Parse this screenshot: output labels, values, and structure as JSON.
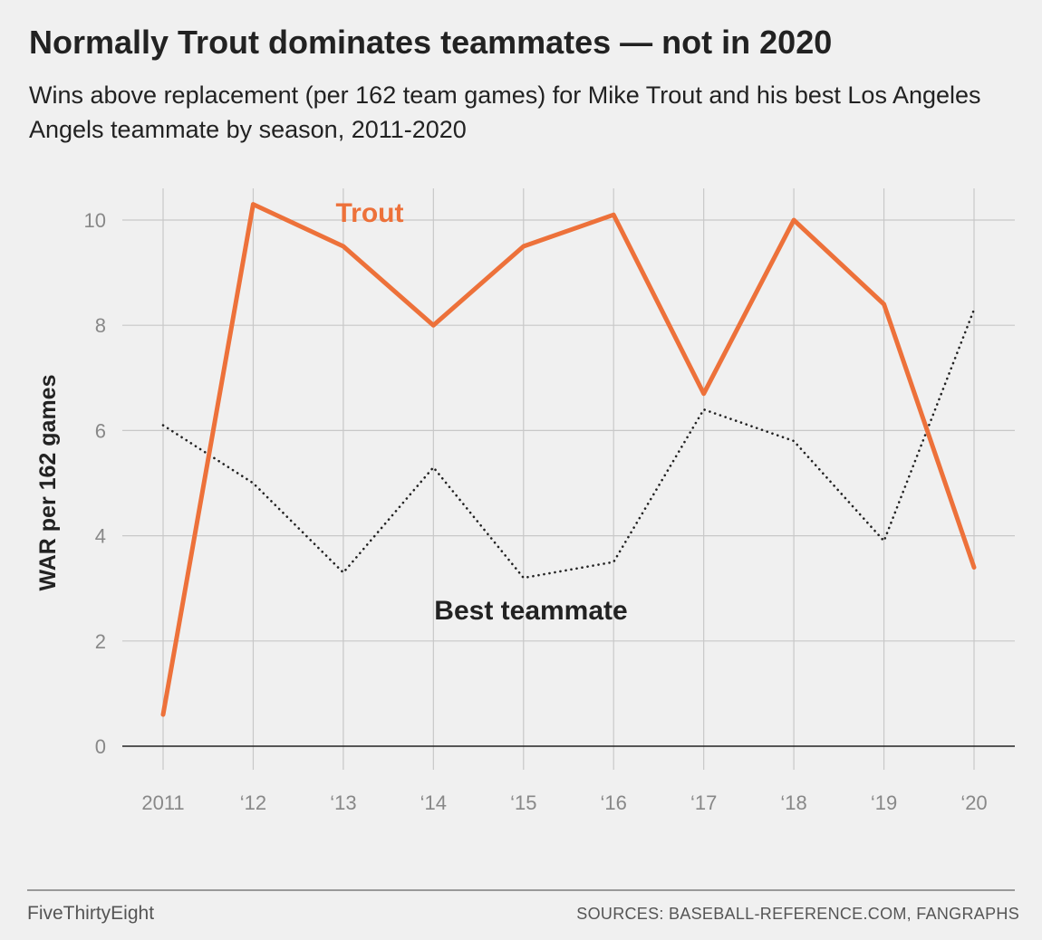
{
  "header": {
    "title": "Normally Trout dominates teammates — not in 2020",
    "subtitle": "Wins above replacement (per 162 team games) for Mike Trout and his best Los Angeles Angels teammate by season, 2011-2020"
  },
  "footer": {
    "brand": "FiveThirtyEight",
    "sources": "SOURCES: BASEBALL-REFERENCE.COM, FANGRAPHS"
  },
  "chart_data": {
    "type": "line",
    "title": "Normally Trout dominates teammates — not in 2020",
    "ylabel": "WAR per 162 games",
    "xlabel": "",
    "ylim": [
      0,
      10.5
    ],
    "yticks": [
      0,
      2,
      4,
      6,
      8,
      10
    ],
    "x": [
      2011,
      2012,
      2013,
      2014,
      2015,
      2016,
      2017,
      2018,
      2019,
      2020
    ],
    "xtick_labels": [
      "2011",
      "‘12",
      "‘13",
      "‘14",
      "‘15",
      "‘16",
      "‘17",
      "‘18",
      "‘19",
      "‘20"
    ],
    "grid": true,
    "series": [
      {
        "name": "Trout",
        "color": "#ed713a",
        "style": "solid",
        "values": [
          0.6,
          10.3,
          9.5,
          8.0,
          9.5,
          10.1,
          6.7,
          10.0,
          8.4,
          3.4
        ]
      },
      {
        "name": "Best teammate",
        "color": "#222222",
        "style": "dotted",
        "values": [
          6.1,
          5.0,
          3.3,
          5.3,
          3.2,
          3.5,
          6.4,
          5.8,
          3.9,
          8.3
        ]
      }
    ]
  }
}
